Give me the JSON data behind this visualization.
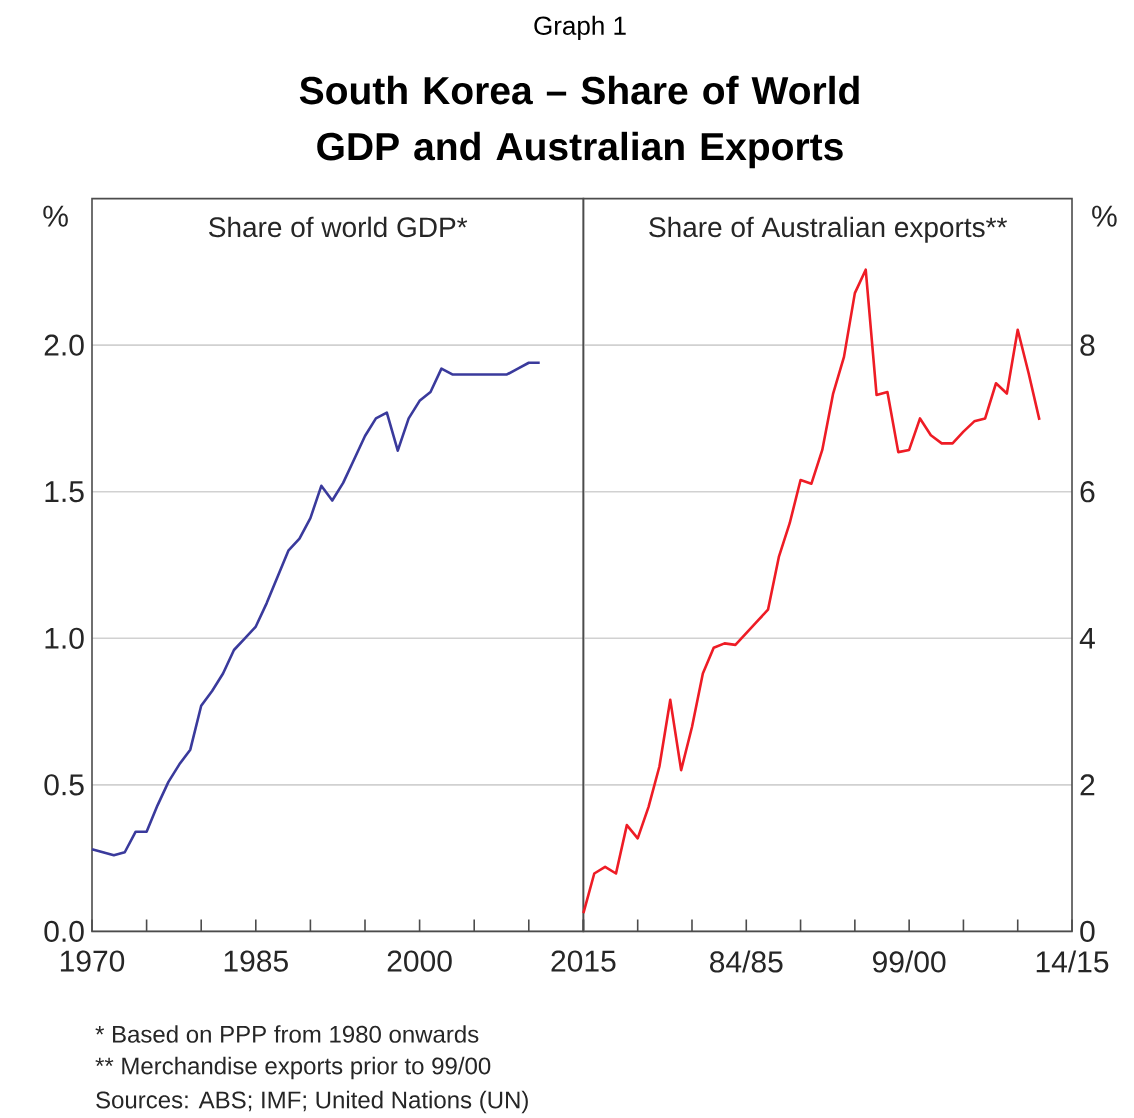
{
  "chart_data": [
    {
      "type": "line",
      "subtitle": "Graph 1",
      "title": "South Korea – Share of World GDP and Australian Exports",
      "ylabel": "%",
      "annotations": [
        "*     Based on PPP from 1980 onwards",
        "**   Merchandise exports prior to 99/00",
        "Sources: ABS; IMF; United Nations (UN)"
      ],
      "x": [
        1970,
        1971,
        1972,
        1973,
        1974,
        1975,
        1976,
        1977,
        1978,
        1979,
        1980,
        1981,
        1982,
        1983,
        1984,
        1985,
        1986,
        1987,
        1988,
        1989,
        1990,
        1991,
        1992,
        1993,
        1994,
        1995,
        1996,
        1997,
        1998,
        1999,
        2000,
        2001,
        2002,
        2003,
        2004,
        2005,
        2006,
        2007,
        2008,
        2009,
        2010,
        2011
      ],
      "series": [
        {
          "name": "Share of world GDP*",
          "color": "#3a3a9c",
          "values": [
            0.28,
            0.27,
            0.26,
            0.27,
            0.34,
            0.34,
            0.43,
            0.51,
            0.57,
            0.62,
            0.77,
            0.82,
            0.88,
            0.96,
            1.0,
            1.04,
            1.12,
            1.21,
            1.3,
            1.34,
            1.41,
            1.52,
            1.47,
            1.53,
            1.61,
            1.69,
            1.75,
            1.77,
            1.64,
            1.75,
            1.81,
            1.84,
            1.92,
            1.9,
            1.9,
            1.9,
            1.9,
            1.9,
            1.9,
            1.92,
            1.94,
            1.94
          ]
        }
      ],
      "xlim": [
        1970,
        2015
      ],
      "xticks": [
        1970,
        {
          "value": 1975,
          "label": null
        },
        {
          "value": 1980,
          "label": null
        },
        1985,
        {
          "value": 1990,
          "label": null
        },
        {
          "value": 1995,
          "label": null
        },
        2000,
        {
          "value": 2005,
          "label": null
        },
        {
          "value": 2010,
          "label": null
        },
        2015
      ],
      "ylim": [
        0,
        2.5
      ],
      "yticks": [
        {
          "value": 0,
          "label": "0.0"
        },
        {
          "value": 0.5,
          "label": "0.5"
        },
        {
          "value": 1,
          "label": "1.0"
        },
        {
          "value": 1.5,
          "label": "1.5"
        },
        {
          "value": 2,
          "label": "2.0"
        }
      ],
      "grid": "y"
    },
    {
      "type": "line",
      "y2label": "%",
      "categories": [
        null,
        null,
        null,
        null,
        null,
        null,
        null,
        null,
        null,
        null,
        null,
        null,
        null,
        null,
        null,
        "84/85",
        null,
        null,
        null,
        null,
        null,
        null,
        null,
        null,
        null,
        null,
        null,
        null,
        null,
        null,
        "99/00",
        null,
        null,
        null,
        null,
        null,
        null,
        null,
        null,
        null,
        null,
        null,
        null,
        null,
        null,
        "14/15"
      ],
      "series": [
        {
          "name": "Share of Australian exports**",
          "color": "#ee1c25",
          "axis": "y2",
          "values": [
            0.25,
            0.79,
            0.88,
            0.79,
            1.45,
            1.27,
            1.7,
            2.25,
            3.16,
            2.2,
            2.79,
            3.52,
            3.87,
            3.93,
            3.91,
            4.07,
            4.23,
            4.39,
            5.11,
            5.57,
            6.16,
            6.11,
            6.57,
            7.34,
            7.84,
            8.71,
            9.03,
            7.32,
            7.36,
            6.54,
            6.57,
            7.0,
            6.77,
            6.66,
            6.66,
            6.82,
            6.96,
            7.0,
            7.48,
            7.34,
            8.21,
            7.62,
            6.98,
            null,
            null,
            null
          ]
        }
      ],
      "y2lim": [
        0,
        10
      ],
      "y2ticks": [
        0,
        2,
        4,
        6,
        8
      ],
      "grid": "y"
    }
  ]
}
